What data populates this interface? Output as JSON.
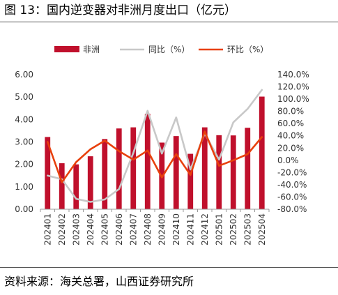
{
  "figure": {
    "title": "图 13：国内逆变器对非洲月度出口（亿元）",
    "source": "资料来源：海关总署，山西证券研究所"
  },
  "chart_data": {
    "type": "bar",
    "categories": [
      "202401",
      "202402",
      "202403",
      "202404",
      "202405",
      "202406",
      "202407",
      "202408",
      "202409",
      "202410",
      "202411",
      "202412",
      "202501",
      "202502",
      "202503",
      "202504"
    ],
    "series": [
      {
        "name": "非洲",
        "type": "bar",
        "axis": "left",
        "color": "#c0102c",
        "values": [
          3.22,
          2.05,
          2.0,
          2.36,
          3.13,
          3.6,
          3.65,
          4.25,
          2.97,
          3.26,
          2.47,
          3.65,
          3.3,
          3.29,
          3.63,
          5.02
        ]
      },
      {
        "name": "同比（%）",
        "type": "line",
        "axis": "right",
        "color": "#c8c8c8",
        "values": [
          -25,
          -31,
          -63,
          -68,
          -64,
          -47,
          12,
          81,
          11,
          70,
          -15,
          44,
          1,
          62,
          84,
          115
        ]
      },
      {
        "name": "环比（%）",
        "type": "line",
        "axis": "right",
        "color": "#e8400c",
        "values": [
          30,
          -36,
          -3,
          18,
          32,
          15,
          1,
          16,
          -28,
          10,
          -24,
          47,
          -9,
          0,
          10,
          38
        ]
      }
    ],
    "left_axis": {
      "min": 0,
      "max": 6,
      "step": 1,
      "tick_labels": [
        "0.00",
        "1.00",
        "2.00",
        "3.00",
        "4.00",
        "5.00",
        "6.00"
      ]
    },
    "right_axis": {
      "min": -80,
      "max": 140,
      "step": 20,
      "tick_labels": [
        "-80.0%",
        "-60.0%",
        "-40.0%",
        "-20.0%",
        "0.0%",
        "20.0%",
        "40.0%",
        "60.0%",
        "80.0%",
        "100.0%",
        "120.0%",
        "140.0%"
      ]
    },
    "grid": false,
    "legend_position": "top"
  }
}
